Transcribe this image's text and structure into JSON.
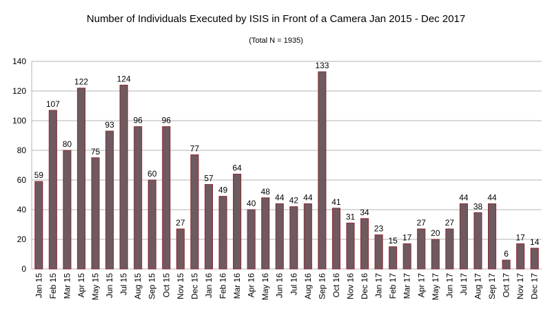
{
  "chart_data": {
    "type": "bar",
    "title": "Number of Individuals Executed by ISIS in Front of a Camera Jan 2015 - Dec 2017",
    "subtitle": "(Total N = 1935)",
    "xlabel": "",
    "ylabel": "",
    "ylim": [
      0,
      140
    ],
    "y_ticks": [
      0,
      20,
      40,
      60,
      80,
      100,
      120,
      140
    ],
    "grid": true,
    "bar_color": "#6e5a5f",
    "bar_edge_color": "#8b2b34",
    "categories": [
      "Jan 15",
      "Feb 15",
      "Mar 15",
      "Apr 15",
      "May 15",
      "Jun 15",
      "Jul 15",
      "Aug 15",
      "Sep 15",
      "Oct 15",
      "Nov 15",
      "Dec 15",
      "Jan 16",
      "Feb 16",
      "Mar 16",
      "Apr 16",
      "May 16",
      "Jun 16",
      "Jul 16",
      "Aug 16",
      "Sep 16",
      "Oct 16",
      "Nov 16",
      "Dec 16",
      "Jan 17",
      "Feb 17",
      "Mar 17",
      "Apr 17",
      "May 17",
      "Jun 17",
      "Jul 17",
      "Aug 17",
      "Sep 17",
      "Oct 17",
      "Nov 17",
      "Dec 17"
    ],
    "values": [
      59,
      107,
      80,
      122,
      75,
      93,
      124,
      96,
      60,
      96,
      27,
      77,
      57,
      49,
      64,
      40,
      48,
      44,
      42,
      44,
      133,
      41,
      31,
      34,
      23,
      15,
      17,
      27,
      20,
      27,
      44,
      38,
      44,
      6,
      17,
      14
    ]
  }
}
